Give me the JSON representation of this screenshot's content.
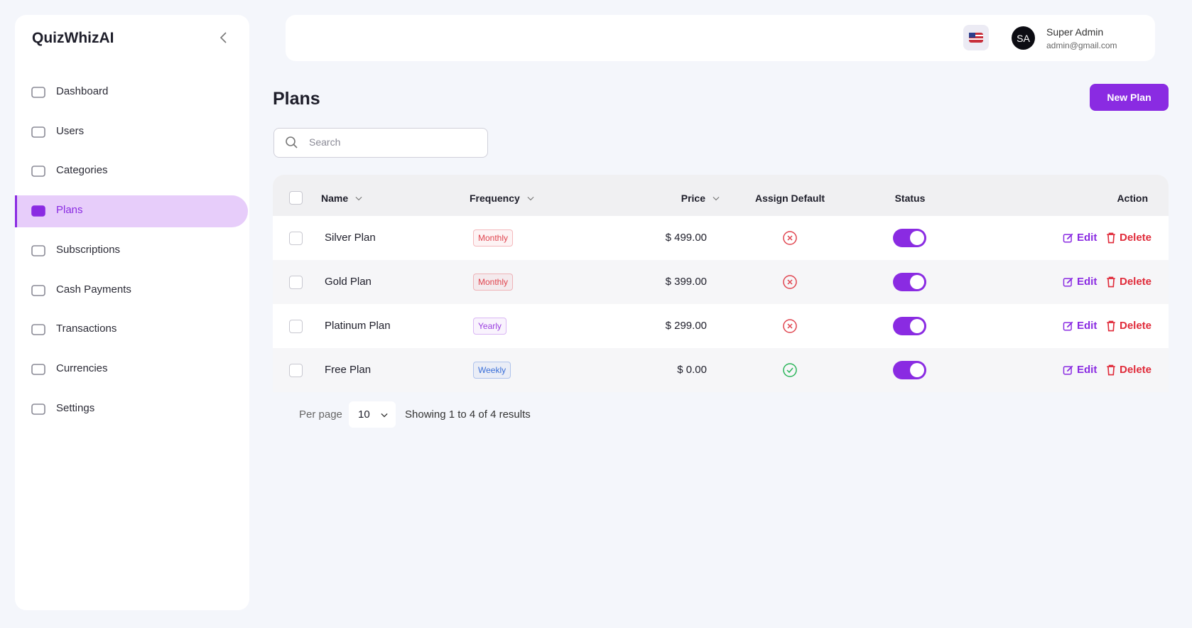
{
  "sidebar": {
    "brand": "QuizWhizAI",
    "nav": [
      {
        "label": "Dashboard",
        "active": false
      },
      {
        "label": "Users",
        "active": false
      },
      {
        "label": "Categories",
        "active": false
      },
      {
        "label": "Plans",
        "active": true
      },
      {
        "label": "Subscriptions",
        "active": false
      },
      {
        "label": "Cash Payments",
        "active": false
      },
      {
        "label": "Transactions",
        "active": false
      },
      {
        "label": "Currencies",
        "active": false
      },
      {
        "label": "Settings",
        "active": false
      }
    ]
  },
  "header": {
    "user_initials": "SA",
    "user_name": "Super Admin",
    "user_email": "admin@gmail.com"
  },
  "page": {
    "title": "Plans",
    "new_button": "New Plan",
    "search_placeholder": "Search"
  },
  "table": {
    "columns": [
      {
        "label": "Name",
        "sortable": true
      },
      {
        "label": "Frequency",
        "sortable": true
      },
      {
        "label": "Price",
        "sortable": true
      },
      {
        "label": "Assign Default",
        "sortable": false
      },
      {
        "label": "Status",
        "sortable": false
      },
      {
        "label": "Action",
        "sortable": false
      }
    ],
    "rows": [
      {
        "name": "Silver Plan",
        "frequency": "Monthly",
        "frequency_color": "#e0454f",
        "price": "$ 499.00",
        "assign_default": false,
        "status": true
      },
      {
        "name": "Gold Plan",
        "frequency": "Monthly",
        "frequency_color": "#e0454f",
        "price": "$ 399.00",
        "assign_default": false,
        "status": true
      },
      {
        "name": "Platinum Plan",
        "frequency": "Yearly",
        "frequency_color": "#9b3fe0",
        "price": "$ 299.00",
        "assign_default": false,
        "status": true
      },
      {
        "name": "Free Plan",
        "frequency": "Weekly",
        "frequency_color": "#3a6fd8",
        "price": "$ 0.00",
        "assign_default": true,
        "status": true
      }
    ],
    "edit_label": "Edit",
    "delete_label": "Delete"
  },
  "pagination": {
    "per_page_label": "Per page",
    "per_page": 10,
    "summary": "Showing 1 to 4 of 4 results"
  }
}
